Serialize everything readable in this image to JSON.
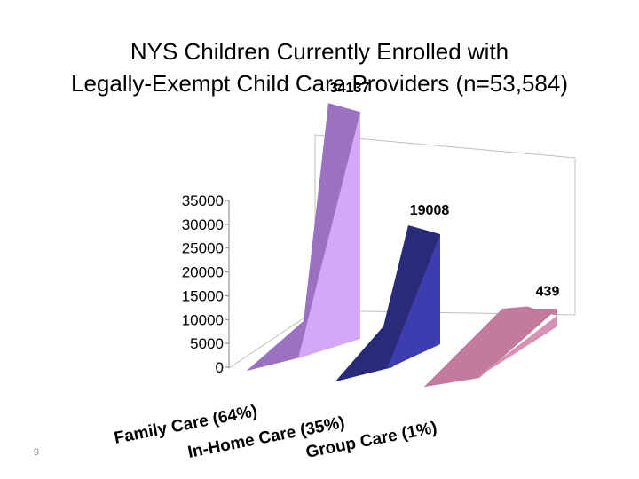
{
  "title": {
    "line1": "NYS Children Currently Enrolled with",
    "line2": "Legally-Exempt Child Care Providers (n=53,584)"
  },
  "page_number": "9",
  "chart_data": {
    "type": "bar",
    "style": "3d-area",
    "title": "NYS Children Currently Enrolled with Legally-Exempt Child Care Providers (n=53,584)",
    "categories": [
      "Family Care (64%)",
      "In-Home Care (35%)",
      "Group Care (1%)"
    ],
    "values": [
      34137,
      19008,
      439
    ],
    "data_labels": [
      "34137",
      "19008",
      "439"
    ],
    "y_ticks": [
      "35000",
      "30000",
      "25000",
      "20000",
      "15000",
      "10000",
      "5000",
      "0"
    ],
    "ylim": [
      0,
      35000
    ],
    "colors": {
      "family_front": "#9a72c0",
      "family_side": "#d4a8f8",
      "inhome_front": "#2a2a7a",
      "inhome_side": "#3d3db0",
      "group_front": "#c27a9e",
      "group_side": "#d890b4"
    },
    "xlabel": "",
    "ylabel": ""
  }
}
